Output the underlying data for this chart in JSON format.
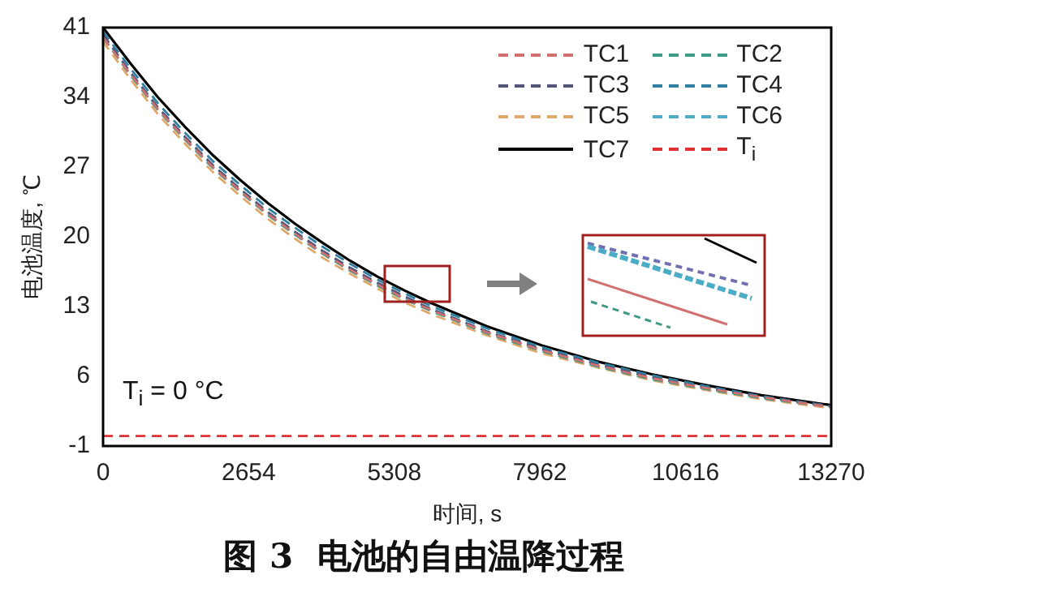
{
  "chart_data": {
    "type": "line",
    "title": "图 3  电池的自由温降过程",
    "xlabel": "时间, s",
    "ylabel": "电池温度, ℃",
    "x": [
      0,
      500,
      1000,
      1500,
      2000,
      2500,
      3000,
      3500,
      4000,
      4500,
      5000,
      5500,
      6000,
      7000,
      8000,
      9000,
      10000,
      11000,
      12000,
      13270
    ],
    "series": [
      {
        "name": "TC1",
        "color": "#d07070",
        "line_style": "dashed",
        "values": [
          40,
          36.3,
          32.8,
          29.8,
          27,
          24.6,
          22.3,
          20.3,
          18.4,
          16.7,
          15.2,
          13.8,
          12.6,
          10.4,
          8.6,
          7.1,
          5.8,
          4.8,
          3.9,
          2.9
        ]
      },
      {
        "name": "TC2",
        "color": "#3f9a85",
        "line_style": "dashed",
        "values": [
          40,
          36.2,
          32.7,
          29.7,
          26.9,
          24.5,
          22.2,
          20.2,
          18.3,
          16.6,
          15.1,
          13.7,
          12.5,
          10.3,
          8.5,
          7,
          5.7,
          4.7,
          3.8,
          2.9
        ]
      },
      {
        "name": "TC3",
        "color": "#55557a",
        "line_style": "dashed",
        "values": [
          40.3,
          36.5,
          33,
          30,
          27.2,
          24.8,
          22.5,
          20.5,
          18.6,
          16.9,
          15.4,
          14,
          12.7,
          10.5,
          8.7,
          7.2,
          5.9,
          4.8,
          3.9,
          3
        ]
      },
      {
        "name": "TC4",
        "color": "#2f7f9f",
        "line_style": "dashed",
        "values": [
          40.6,
          36.9,
          33.4,
          30.4,
          27.6,
          25.2,
          22.9,
          20.9,
          19,
          17.3,
          15.7,
          14.3,
          13,
          10.8,
          8.9,
          7.4,
          6.1,
          5,
          4,
          3
        ]
      },
      {
        "name": "TC5",
        "color": "#e0a868",
        "line_style": "dashed",
        "values": [
          39.6,
          35.8,
          32.3,
          29.3,
          26.5,
          24.1,
          21.8,
          19.8,
          17.9,
          16.3,
          14.8,
          13.4,
          12.2,
          10.1,
          8.3,
          6.9,
          5.6,
          4.6,
          3.7,
          2.8
        ]
      },
      {
        "name": "TC6",
        "color": "#4bacc6",
        "line_style": "dashed",
        "values": [
          40.2,
          36.4,
          32.9,
          29.9,
          27.1,
          24.7,
          22.4,
          20.4,
          18.5,
          16.8,
          15.3,
          13.9,
          12.7,
          10.5,
          8.7,
          7.2,
          5.9,
          4.8,
          3.9,
          3
        ]
      },
      {
        "name": "TC7",
        "color": "#000000",
        "line_style": "solid",
        "values": [
          41,
          37.4,
          34,
          31,
          28.2,
          25.7,
          23.4,
          21.3,
          19.4,
          17.6,
          16,
          14.6,
          13.3,
          11,
          9.1,
          7.5,
          6.2,
          5.1,
          4.1,
          3.1
        ]
      },
      {
        "name": "T$_{i}$",
        "color": "#e03030",
        "line_style": "dashed",
        "x": [
          0,
          13270
        ],
        "values": [
          0,
          0
        ]
      }
    ],
    "xlim": [
      0,
      13270
    ],
    "xticks": [
      0,
      2654,
      5308,
      7962,
      10616,
      13270
    ],
    "ylim": [
      -1,
      41
    ],
    "yticks": [
      -1,
      6,
      13,
      20,
      27,
      34,
      41
    ],
    "grid": false,
    "legend": "top right",
    "marker": "none",
    "annotations": [
      "T$_{i}$ = 0 °C"
    ]
  }
}
